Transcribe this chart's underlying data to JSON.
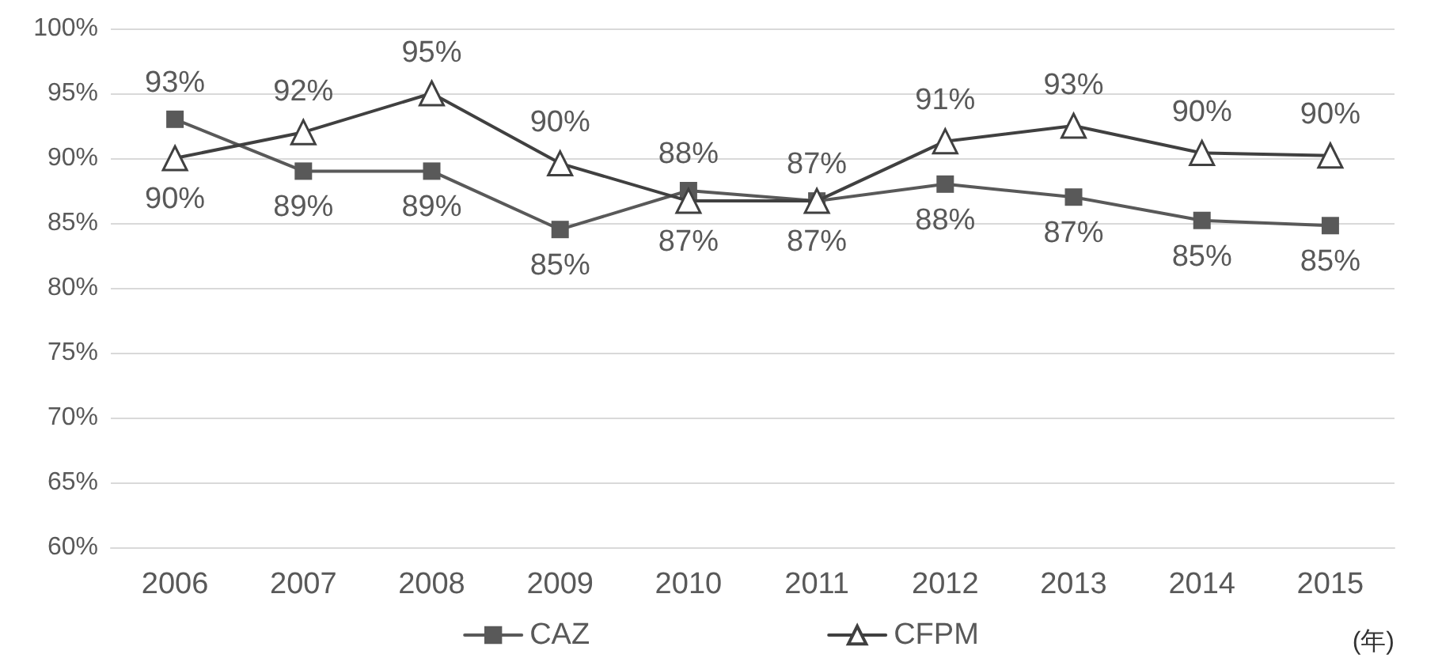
{
  "chart_data": {
    "type": "line",
    "xlabel": "(年)",
    "categories": [
      "2006",
      "2007",
      "2008",
      "2009",
      "2010",
      "2011",
      "2012",
      "2013",
      "2014",
      "2015"
    ],
    "series": [
      {
        "name": "CAZ",
        "color": "#595959",
        "marker": "square",
        "values": [
          93,
          89,
          89,
          84.5,
          87.5,
          86.7,
          88,
          87,
          85.2,
          84.8
        ],
        "value_labels": [
          "93%",
          "89%",
          "89%",
          "85%",
          "88%",
          "87%",
          "88%",
          "87%",
          "85%",
          "85%"
        ]
      },
      {
        "name": "CFPM",
        "color": "#404040",
        "marker": "triangle",
        "values": [
          90,
          92,
          95,
          89.6,
          86.7,
          86.7,
          91.3,
          92.5,
          90.4,
          90.2
        ],
        "value_labels": [
          "90%",
          "92%",
          "95%",
          "90%",
          "87%",
          "87%",
          "91%",
          "93%",
          "90%",
          "90%"
        ]
      }
    ],
    "ylim": [
      60,
      100
    ],
    "yticks": [
      {
        "value": 60,
        "label": "60%"
      },
      {
        "value": 65,
        "label": "65%"
      },
      {
        "value": 70,
        "label": "70%"
      },
      {
        "value": 75,
        "label": "75%"
      },
      {
        "value": 80,
        "label": "80%"
      },
      {
        "value": 85,
        "label": "85%"
      },
      {
        "value": 90,
        "label": "90%"
      },
      {
        "value": 95,
        "label": "95%"
      },
      {
        "value": 100,
        "label": "100%"
      }
    ],
    "grid": "y",
    "legend": "bottom",
    "line_style": "solid"
  }
}
